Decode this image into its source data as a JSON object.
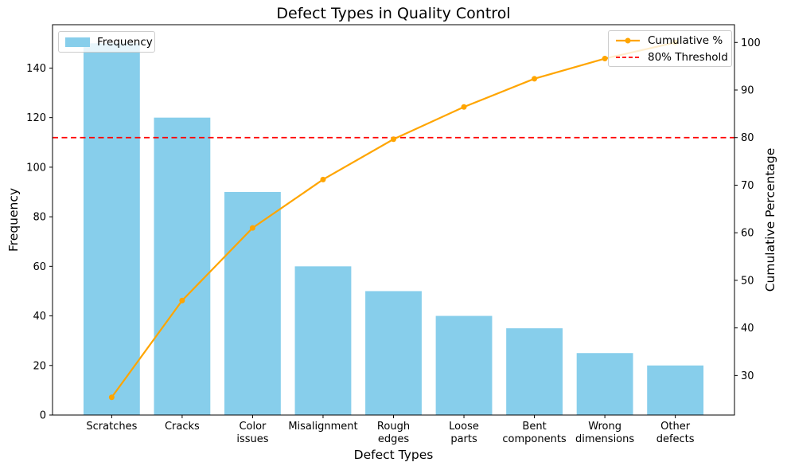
{
  "chart_data": {
    "type": "bar",
    "title": "Defect Types in Quality Control",
    "xlabel": "Defect Types",
    "ylabel": "Frequency",
    "ylabel_right": "Cumulative Percentage",
    "categories": [
      "Scratches",
      "Cracks",
      "Color issues",
      "Misalignment",
      "Rough edges",
      "Loose parts",
      "Bent components",
      "Wrong dimensions",
      "Other defects"
    ],
    "category_label_lines": [
      [
        "Scratches"
      ],
      [
        "Cracks"
      ],
      [
        "Color",
        "issues"
      ],
      [
        "Misalignment"
      ],
      [
        "Rough",
        "edges"
      ],
      [
        "Loose",
        "parts"
      ],
      [
        "Bent",
        "components"
      ],
      [
        "Wrong",
        "dimensions"
      ],
      [
        "Other",
        "defects"
      ]
    ],
    "bar_width": 0.8,
    "series": [
      {
        "name": "Frequency",
        "type": "bar",
        "axis": "left",
        "color": "#87CEEB",
        "values": [
          150,
          120,
          90,
          60,
          50,
          40,
          35,
          25,
          20
        ]
      },
      {
        "name": "Cumulative %",
        "type": "line",
        "axis": "right",
        "color": "#FFA500",
        "marker": "circle",
        "values": [
          25.42,
          45.76,
          61.02,
          71.19,
          79.66,
          86.44,
          92.37,
          96.61,
          100.0
        ]
      }
    ],
    "threshold": {
      "label": "80% Threshold",
      "value": 80,
      "color": "#FF0000",
      "style": "dashed"
    },
    "axes": {
      "left": {
        "ticks": [
          0,
          20,
          40,
          60,
          80,
          100,
          120,
          140
        ],
        "range": [
          0,
          157.5
        ]
      },
      "right": {
        "ticks": [
          30,
          40,
          50,
          60,
          70,
          80,
          90,
          100
        ],
        "range": [
          21.69,
          103.73
        ]
      },
      "x": {
        "range": [
          -0.84,
          8.84
        ]
      }
    },
    "grid": false,
    "legend_left_position": "upper left",
    "legend_right_position": "upper right",
    "colors": {
      "spine": "#000000",
      "text": "#000000",
      "background": "#ffffff"
    }
  }
}
